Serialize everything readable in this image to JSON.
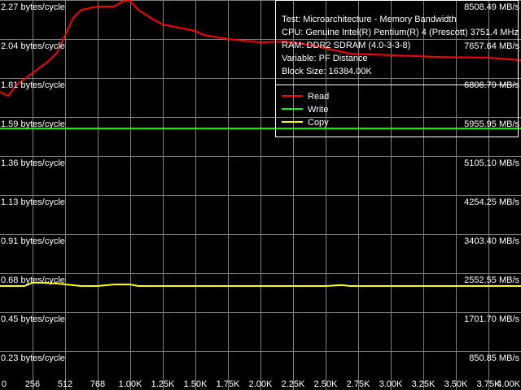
{
  "chart_data": {
    "type": "line",
    "xlim": [
      0,
      4096
    ],
    "ylim": [
      0,
      2.268
    ],
    "grid": true,
    "legend_placement": "top-right",
    "x_tick_values": [
      0,
      256,
      512,
      768,
      1024,
      1280,
      1536,
      1792,
      2048,
      2304,
      2560,
      2816,
      3072,
      3328,
      3584,
      3840,
      4096
    ],
    "x_tick_labels": [
      "0",
      "256",
      "512",
      "768",
      "1.00K",
      "1.25K",
      "1.50K",
      "1.75K",
      "2.00K",
      "2.25K",
      "2.50K",
      "2.75K",
      "3.00K",
      "3.25K",
      "3.50K",
      "3.75K",
      "4.00K"
    ],
    "y_tick_labels_left": [
      "0.23 bytes/cycle",
      "0.45 bytes/cycle",
      "0.68 bytes/cycle",
      "0.91 bytes/cycle",
      "1.13 bytes/cycle",
      "1.36 bytes/cycle",
      "1.59 bytes/cycle",
      "1.81 bytes/cycle",
      "2.04 bytes/cycle",
      "2.27 bytes/cycle"
    ],
    "y_tick_labels_right": [
      "850.85 MB/s",
      "1701.70 MB/s",
      "2552.55 MB/s",
      "3403.40 MB/s",
      "4254.25 MB/s",
      "5105.10 MB/s",
      "5955.95 MB/s",
      "6806.79 MB/s",
      "7657.64 MB/s",
      "8508.49 MB/s"
    ],
    "info": [
      "Test: Microarchitecture - Memory Bandwidth",
      "CPU: Genuine Intel(R) Pentium(R) 4 (Prescott) 3751.4 MHz",
      "RAM: DDR2 SDRAM (4.0-3-3-8)",
      "Variable: PF Distance",
      "Block Size: 16384.00K"
    ],
    "series": [
      {
        "name": "Read",
        "color": "#ff0000",
        "x": [
          0,
          64,
          128,
          256,
          384,
          448,
          499,
          576,
          640,
          768,
          896,
          973,
          1024,
          1088,
          1216,
          1280,
          1408,
          1536,
          1600,
          1792,
          2048,
          2240,
          2432,
          2752,
          3072,
          3456,
          3840,
          4096
        ],
        "y": [
          1.734,
          1.71,
          1.772,
          1.843,
          1.914,
          1.961,
          2.041,
          2.164,
          2.211,
          2.23,
          2.23,
          2.263,
          2.263,
          2.211,
          2.15,
          2.126,
          2.107,
          2.088,
          2.065,
          2.041,
          2.022,
          2.027,
          2.008,
          1.956,
          1.947,
          1.937,
          1.933,
          1.918
        ]
      },
      {
        "name": "Write",
        "color": "#00ff00",
        "x": [
          0,
          4096
        ],
        "y": [
          1.521,
          1.521
        ]
      },
      {
        "name": "Copy",
        "color": "#ffff00",
        "x": [
          0,
          192,
          256,
          320,
          448,
          640,
          768,
          896,
          1024,
          1088,
          2304,
          2560,
          2688,
          2752,
          4096
        ],
        "y": [
          0.605,
          0.605,
          0.624,
          0.624,
          0.619,
          0.605,
          0.605,
          0.614,
          0.614,
          0.605,
          0.605,
          0.605,
          0.61,
          0.605,
          0.605
        ]
      }
    ]
  }
}
